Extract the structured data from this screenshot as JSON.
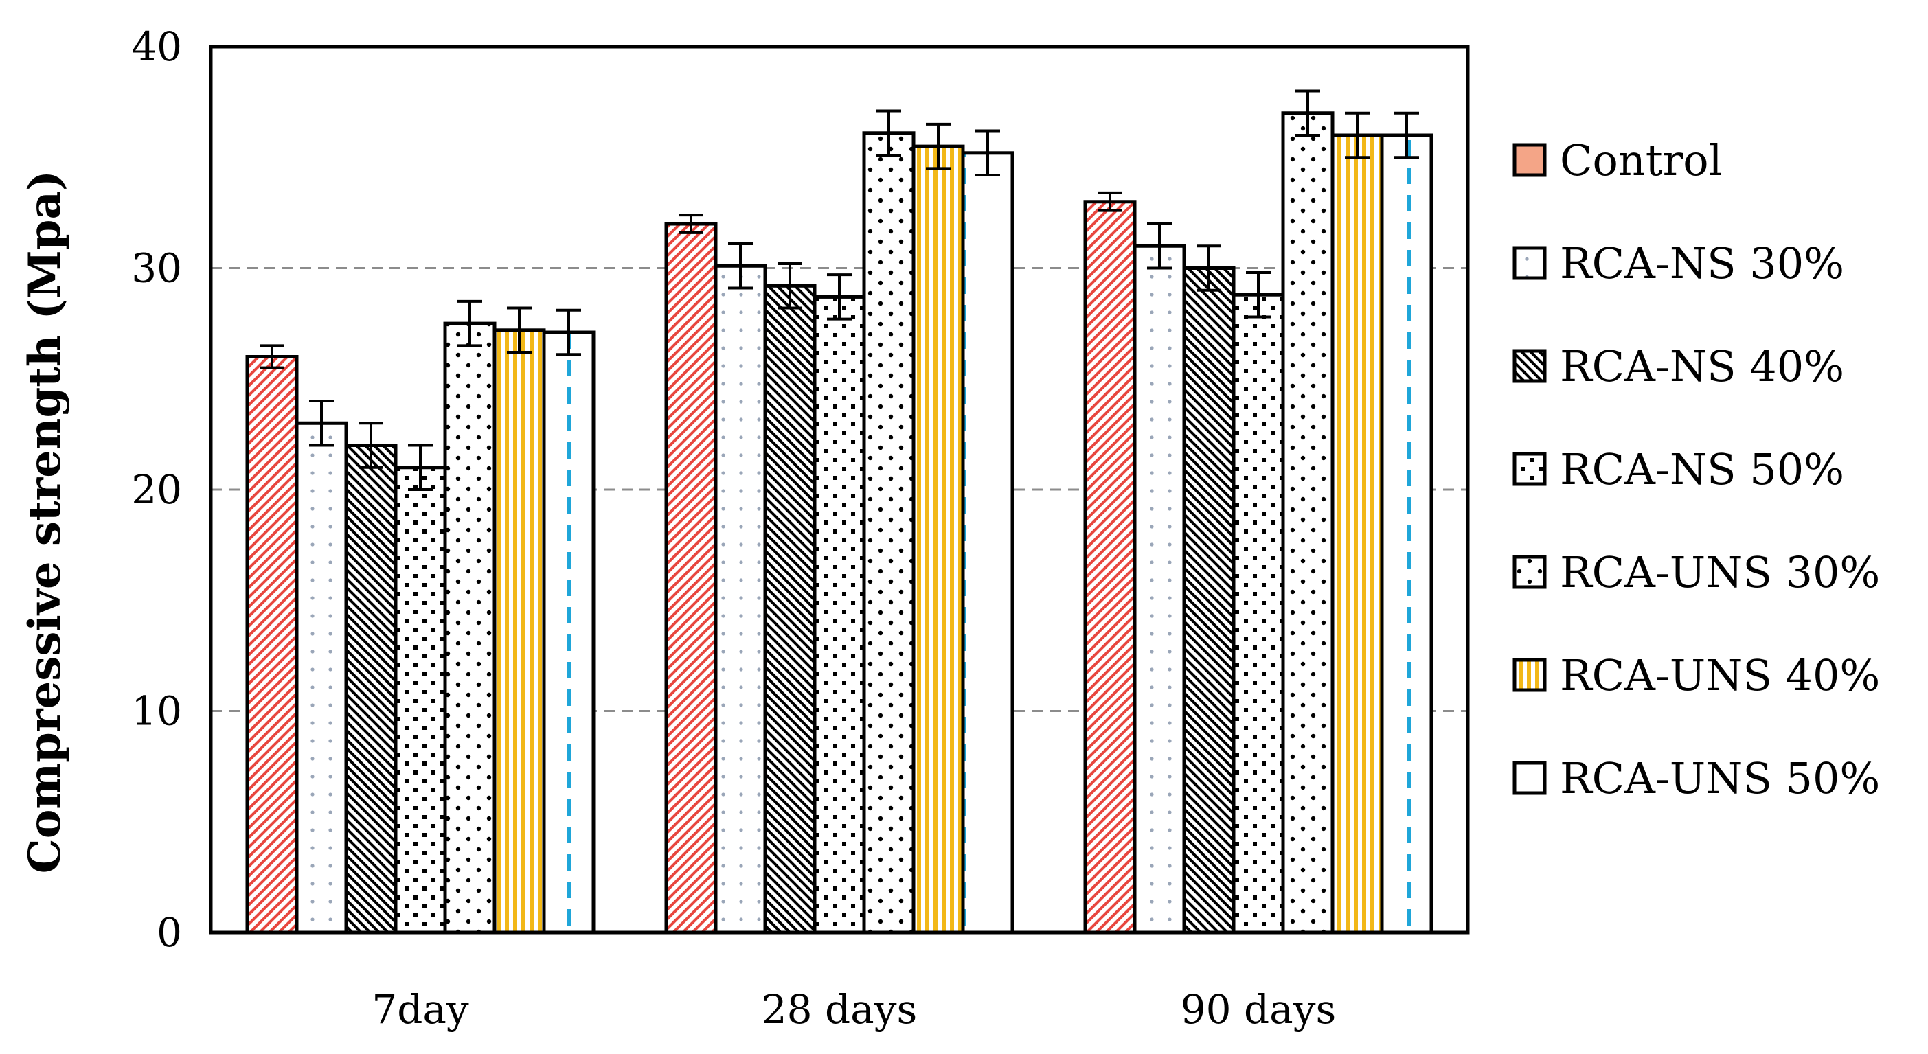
{
  "chart_data": {
    "type": "bar",
    "title": "",
    "xlabel": "",
    "ylabel": "Compressive strength (Mpa)",
    "ylim": [
      0,
      40
    ],
    "yticks": [
      0,
      10,
      20,
      30,
      40
    ],
    "grid": "horizontal dashed",
    "legend_position": "right",
    "error_bars": true,
    "categories": [
      "7day",
      "28 days",
      "90 days"
    ],
    "series": [
      {
        "name": "Control",
        "values": [
          26,
          32,
          33
        ],
        "errors": [
          0.5,
          0.4,
          0.4
        ],
        "pattern": "diagonal-up",
        "color": "#e8473f"
      },
      {
        "name": "RCA-NS 30%",
        "values": [
          23,
          30.1,
          31
        ],
        "errors": [
          1.0,
          1.0,
          1.0
        ],
        "pattern": "sparse-dots",
        "color": "#9aa6b8"
      },
      {
        "name": "RCA-NS 40%",
        "values": [
          22,
          29.2,
          30
        ],
        "errors": [
          1.0,
          1.0,
          1.0
        ],
        "pattern": "diagonal-down",
        "color": "#000000"
      },
      {
        "name": "RCA-NS 50%",
        "values": [
          21,
          28.7,
          28.8
        ],
        "errors": [
          1.0,
          1.0,
          1.0
        ],
        "pattern": "checker",
        "color": "#000000"
      },
      {
        "name": "RCA-UNS 30%",
        "values": [
          27.5,
          36.1,
          37
        ],
        "errors": [
          1.0,
          1.0,
          1.0
        ],
        "pattern": "dots",
        "color": "#000000"
      },
      {
        "name": "RCA-UNS 40%",
        "values": [
          27.2,
          35.5,
          36
        ],
        "errors": [
          1.0,
          1.0,
          1.0
        ],
        "pattern": "vertical",
        "color": "#f2b817"
      },
      {
        "name": "RCA-UNS 50%",
        "values": [
          27.1,
          35.2,
          36
        ],
        "errors": [
          1.0,
          1.0,
          1.0
        ],
        "pattern": "dashed-vertical",
        "color": "#1fa6d9"
      }
    ]
  }
}
